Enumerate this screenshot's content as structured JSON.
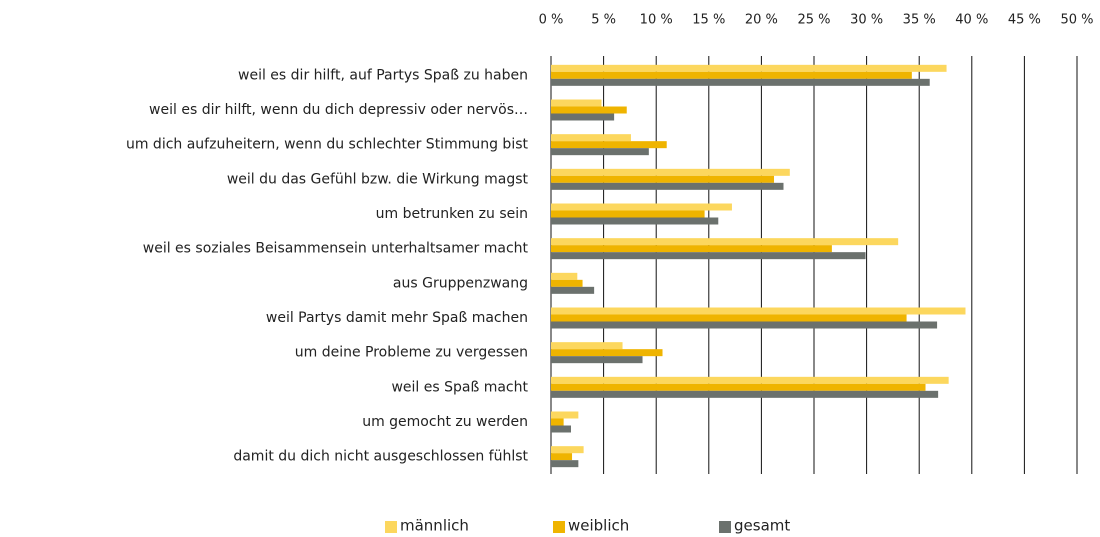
{
  "chart_data": {
    "type": "barh",
    "categories": [
      "weil es dir hilft, auf Partys Spaß zu haben",
      "weil es dir hilft, wenn du dich depressiv oder nervös…",
      "um dich aufzuheitern, wenn du schlechter Stimmung bist",
      "weil du das Gefühl bzw. die Wirkung magst",
      "um betrunken zu sein",
      "weil es soziales Beisammensein unterhaltsamer macht",
      "aus Gruppenzwang",
      "weil Partys damit mehr Spaß machen",
      "um deine Probleme zu vergessen",
      "weil es Spaß macht",
      "um gemocht zu werden",
      "damit du dich nicht ausgeschlossen fühlst"
    ],
    "series": [
      {
        "name": "männlich",
        "color": "#fcd75e",
        "values": [
          37.6,
          4.8,
          7.6,
          22.7,
          17.2,
          33.0,
          2.5,
          39.4,
          6.8,
          37.8,
          2.6,
          3.1
        ]
      },
      {
        "name": "weiblich",
        "color": "#efb400",
        "values": [
          34.3,
          7.2,
          11.0,
          21.2,
          14.6,
          26.7,
          3.0,
          33.8,
          10.6,
          35.6,
          1.2,
          2.0
        ]
      },
      {
        "name": "gesamt",
        "color": "#6b716d",
        "values": [
          36.0,
          6.0,
          9.3,
          22.1,
          15.9,
          29.9,
          4.1,
          36.7,
          8.7,
          36.8,
          1.9,
          2.6
        ]
      }
    ],
    "xlim": [
      0,
      50
    ],
    "xticks": [
      {
        "value": 0,
        "label": "0 %"
      },
      {
        "value": 5,
        "label": "5 %"
      },
      {
        "value": 10,
        "label": "10 %"
      },
      {
        "value": 15,
        "label": "15 %"
      },
      {
        "value": 20,
        "label": "20 %"
      },
      {
        "value": 25,
        "label": "25 %"
      },
      {
        "value": 30,
        "label": "30 %"
      },
      {
        "value": 35,
        "label": "35 %"
      },
      {
        "value": 40,
        "label": "40 %"
      },
      {
        "value": 45,
        "label": "45 %"
      },
      {
        "value": 50,
        "label": "50 %"
      }
    ],
    "grid": true,
    "legend": "bottom"
  }
}
